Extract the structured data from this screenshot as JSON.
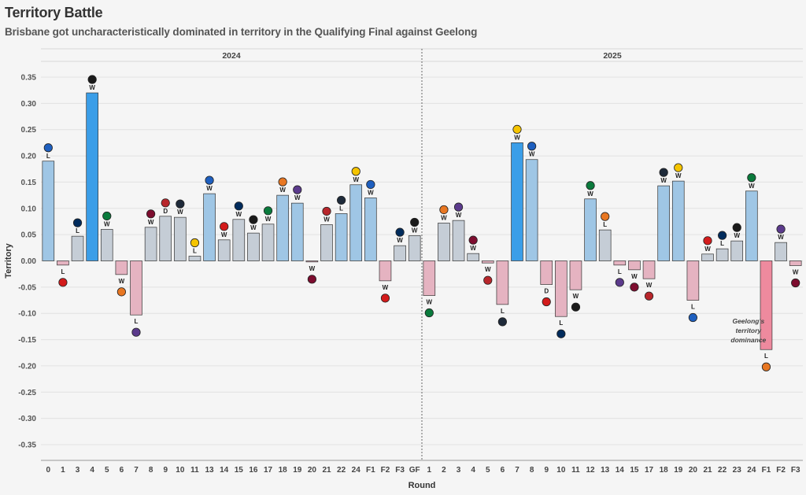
{
  "title": "Territory Battle",
  "subtitle": "Brisbane got uncharacteristically dominated in territory in the Qualifying Final against Geelong",
  "chart_data": {
    "type": "bar",
    "xlabel": "Round",
    "ylabel": "Territory",
    "ylim": [
      -0.38,
      0.38
    ],
    "yticks": [
      "0.35",
      "0.30",
      "0.25",
      "0.20",
      "0.15",
      "0.10",
      "0.05",
      "0.00",
      "-0.05",
      "-0.10",
      "-0.15",
      "-0.20",
      "-0.25",
      "-0.30",
      "-0.35"
    ],
    "grid": true,
    "annotation": "Geelong's territory dominance",
    "panels": [
      {
        "label": "2024",
        "categories": [
          "0",
          "1",
          "3",
          "4",
          "5",
          "6",
          "7",
          "8",
          "9",
          "10",
          "11",
          "13",
          "14",
          "15",
          "16",
          "17",
          "18",
          "19",
          "20",
          "21",
          "22",
          "24",
          "F1",
          "F2",
          "F3",
          "GF"
        ],
        "values": [
          0.19,
          -0.008,
          0.047,
          0.32,
          0.06,
          -0.026,
          -0.103,
          0.064,
          0.085,
          0.083,
          0.009,
          0.128,
          0.04,
          0.079,
          0.053,
          0.07,
          0.125,
          0.11,
          -0.002,
          0.069,
          0.09,
          0.145,
          0.12,
          -0.038,
          0.029,
          0.048
        ],
        "results": [
          "L",
          "L",
          "L",
          "W",
          "W",
          "W",
          "L",
          "W",
          "D",
          "W",
          "L",
          "W",
          "W",
          "W",
          "W",
          "W",
          "W",
          "W",
          "W",
          "W",
          "L",
          "W",
          "W",
          "W",
          "W",
          "W"
        ]
      },
      {
        "label": "2025",
        "categories": [
          "1",
          "2",
          "3",
          "4",
          "5",
          "6",
          "7",
          "8",
          "9",
          "10",
          "11",
          "12",
          "13",
          "14",
          "15",
          "17",
          "18",
          "19",
          "20",
          "21",
          "22",
          "23",
          "24",
          "F1",
          "F2",
          "F3"
        ],
        "values": [
          -0.066,
          0.072,
          0.077,
          0.014,
          -0.004,
          -0.083,
          0.225,
          0.193,
          -0.045,
          -0.106,
          -0.055,
          0.118,
          0.059,
          -0.008,
          -0.017,
          -0.034,
          0.143,
          0.152,
          -0.075,
          0.013,
          0.023,
          0.038,
          0.133,
          -0.169,
          0.035,
          -0.009
        ],
        "results": [
          "W",
          "W",
          "W",
          "W",
          "W",
          "L",
          "W",
          "W",
          "D",
          "L",
          "W",
          "W",
          "L",
          "L",
          "W",
          "W",
          "W",
          "W",
          "L",
          "W",
          "L",
          "W",
          "W",
          "L",
          "W",
          "W"
        ]
      }
    ]
  },
  "colors": {
    "strong_positive": "#3b9ee8",
    "positive_bar": "#9fc6e5",
    "neutral_bar": "#c5cdd6",
    "negative_bar": "#e5b3c1",
    "strong_negative": "#ee8a9e",
    "bar_stroke": "#333333",
    "grid": "#e2e2e2",
    "divider": "#666666"
  }
}
